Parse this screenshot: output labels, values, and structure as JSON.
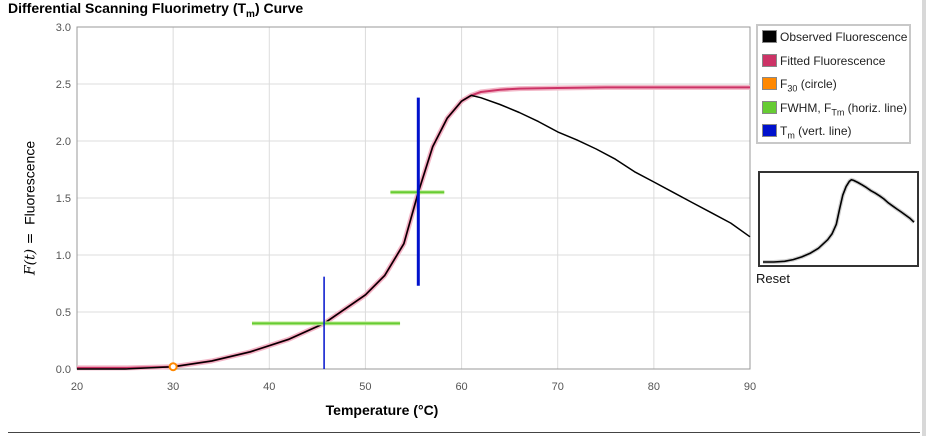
{
  "chart_data": {
    "type": "line",
    "title": "Differential Scanning Fluorimetry (Tm) Curve",
    "title_parts": {
      "main": "Differential Scanning Fluorimetry (T",
      "sub": "m",
      "end": ") Curve"
    },
    "xlabel": "Temperature (°C)",
    "ylabel": {
      "fx": "F(t) =",
      "text": "Fluorescence"
    },
    "xlim": [
      20,
      90
    ],
    "ylim": [
      0,
      3.0
    ],
    "x_ticks": [
      20,
      30,
      40,
      50,
      60,
      70,
      80,
      90
    ],
    "y_ticks": [
      "0.0",
      "0.5",
      "1.0",
      "1.5",
      "2.0",
      "2.5",
      "3.0"
    ],
    "grid": true,
    "legend_position": "right-top",
    "series": [
      {
        "name": "Observed Fluorescence",
        "color": "#000000",
        "x": [
          20,
          25,
          30,
          34,
          38,
          42,
          45.7,
          50,
          52,
          54,
          55.5,
          57,
          58.5,
          60,
          61,
          62,
          64,
          66,
          68,
          70,
          72,
          74,
          76,
          78,
          80,
          82,
          84,
          86,
          88,
          90
        ],
        "y": [
          0.0,
          0.0,
          0.02,
          0.07,
          0.15,
          0.26,
          0.4,
          0.65,
          0.82,
          1.1,
          1.55,
          1.95,
          2.2,
          2.35,
          2.4,
          2.38,
          2.32,
          2.25,
          2.17,
          2.08,
          2.01,
          1.93,
          1.84,
          1.73,
          1.64,
          1.55,
          1.46,
          1.37,
          1.28,
          1.16
        ]
      },
      {
        "name": "Fitted Fluorescence",
        "color": "#cc3366",
        "x": [
          20,
          25,
          30,
          34,
          38,
          42,
          45.7,
          50,
          52,
          54,
          55.5,
          57,
          58.5,
          60,
          61,
          62,
          64,
          66,
          70,
          75,
          80,
          90
        ],
        "y": [
          0.01,
          0.01,
          0.02,
          0.07,
          0.15,
          0.26,
          0.4,
          0.65,
          0.82,
          1.1,
          1.55,
          1.95,
          2.2,
          2.35,
          2.4,
          2.43,
          2.45,
          2.46,
          2.465,
          2.47,
          2.47,
          2.47
        ]
      }
    ],
    "f30_point": {
      "name": "F30 (circle)",
      "name_parts": {
        "main": "F",
        "sub": "30",
        "end": " (circle)"
      },
      "color": "#ff8800",
      "x": 30,
      "y": 0.02
    },
    "fwhm_lines": {
      "name": "FWHM, FTm (horiz. line)",
      "name_parts": {
        "main": "FWHM, F",
        "sub": "Tm",
        "end": " (horiz. line)"
      },
      "color": "#66cc33",
      "segments": [
        {
          "x1": 38.2,
          "x2": 53.6,
          "y": 0.4
        },
        {
          "x1": 52.6,
          "x2": 58.2,
          "y": 1.55
        }
      ]
    },
    "tm_lines": {
      "name": "Tm (vert. line)",
      "name_parts": {
        "main": "T",
        "sub": "m",
        "end": " (vert. line)"
      },
      "color": "#0011cc",
      "segments": [
        {
          "x": 45.7,
          "y1": 0.0,
          "y2": 0.81,
          "thick": false
        },
        {
          "x": 55.5,
          "y1": 0.73,
          "y2": 2.38,
          "thick": true
        }
      ]
    }
  },
  "legend": {
    "items": [
      {
        "main": "Observed Fluorescence",
        "sub": "",
        "end": "",
        "color": "#000000"
      },
      {
        "main": "Fitted Fluorescence",
        "sub": "",
        "end": "",
        "color": "#cc3366"
      },
      {
        "main": "F",
        "sub": "30",
        "end": " (circle)",
        "color": "#ff8800"
      },
      {
        "main": "FWHM, F",
        "sub": "Tm",
        "end": " (horiz. line)",
        "color": "#66cc33"
      },
      {
        "main": "T",
        "sub": "m",
        "end": " (vert. line)",
        "color": "#0011cc"
      }
    ]
  },
  "reset_label": "Reset"
}
